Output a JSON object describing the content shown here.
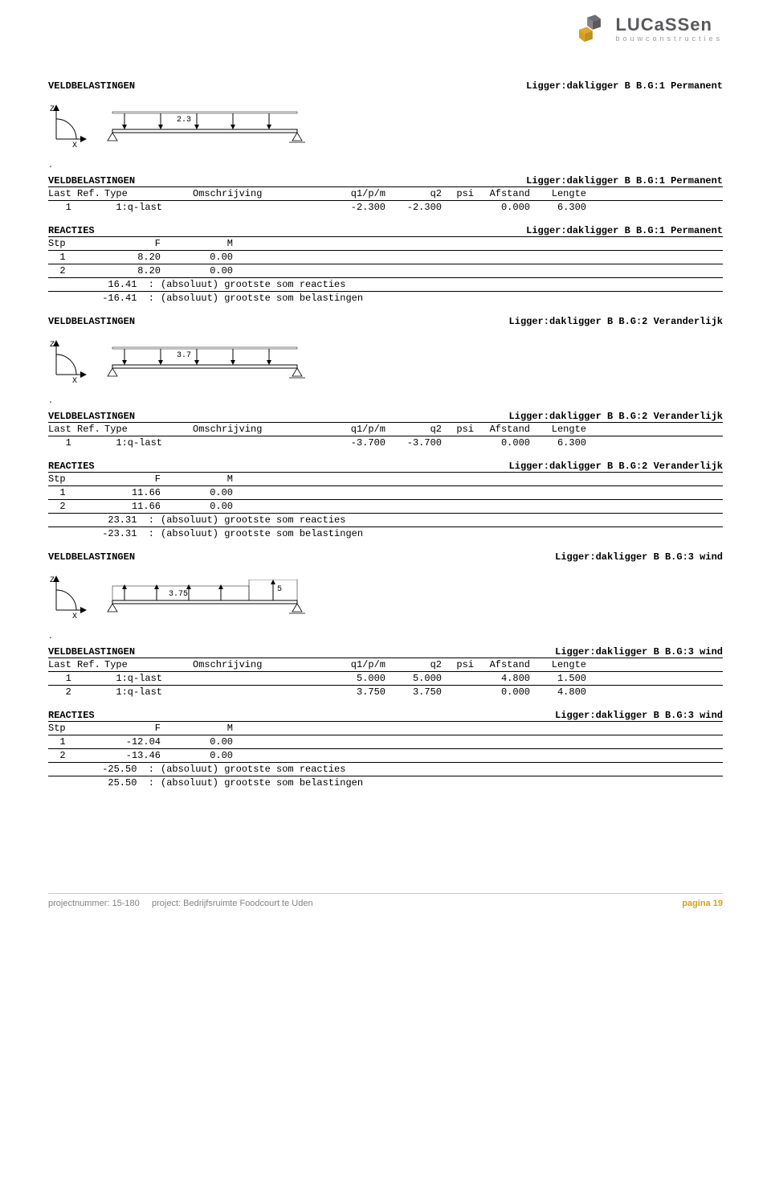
{
  "logo": {
    "name": "LUCaSSen",
    "sub": "bouwconstructies",
    "cube_color_a": "#e0a72a",
    "cube_color_b": "#c28f1d",
    "cube_color_c": "#6d6e71"
  },
  "footer": {
    "projnum_label": "projectnummer:",
    "projnum": "15-180",
    "proj_label": "project:",
    "proj": "Bedrijfsruimte Foodcourt te Uden",
    "page_label": "pagina",
    "page_num": "19"
  },
  "labels": {
    "veldbelastingen": "VELDBELASTINGEN",
    "reacties": "REACTIES",
    "lastref": "Last Ref.",
    "type": "Type",
    "oms": "Omschrijving",
    "q1": "q1/p/m",
    "q2": "q2",
    "psi": "psi",
    "afstand": "Afstand",
    "lengte": "Lengte",
    "stp": "Stp",
    "F": "F",
    "M": "M",
    "abs_react": "(absoluut) grootste som reacties",
    "abs_belast": "(absoluut) grootste som belastingen"
  },
  "sections": [
    {
      "title_right": "Ligger:dakligger B B.G:1 Permanent",
      "diagram": {
        "label": "2.3",
        "type": "down",
        "second_label": null,
        "colors": {
          "beam": "#000000",
          "arrow": "#000000",
          "axis": "#000000"
        }
      },
      "load_title_right": "Ligger:dakligger B B.G:1 Permanent",
      "loads": [
        {
          "ref": "1",
          "type": "1:q-last",
          "oms": "",
          "q1": "-2.300",
          "q2": "-2.300",
          "psi": "",
          "afst": "0.000",
          "len": "6.300"
        }
      ],
      "react_title_right": "Ligger:dakligger B B.G:1 Permanent",
      "reactions": [
        {
          "stp": "1",
          "F": "8.20",
          "M": "0.00"
        },
        {
          "stp": "2",
          "F": "8.20",
          "M": "0.00"
        }
      ],
      "sums": [
        {
          "val": "16.41  :",
          "lbl_key": "abs_react"
        },
        {
          "val": "-16.41  :",
          "lbl_key": "abs_belast"
        }
      ]
    },
    {
      "title_right": "Ligger:dakligger B B.G:2 Veranderlijk",
      "diagram": {
        "label": "3.7",
        "type": "down",
        "second_label": null,
        "colors": {
          "beam": "#000000",
          "arrow": "#000000",
          "axis": "#000000"
        }
      },
      "load_title_right": "Ligger:dakligger B B.G:2 Veranderlijk",
      "loads": [
        {
          "ref": "1",
          "type": "1:q-last",
          "oms": "",
          "q1": "-3.700",
          "q2": "-3.700",
          "psi": "",
          "afst": "0.000",
          "len": "6.300"
        }
      ],
      "react_title_right": "Ligger:dakligger B B.G:2 Veranderlijk",
      "reactions": [
        {
          "stp": "1",
          "F": "11.66",
          "M": "0.00"
        },
        {
          "stp": "2",
          "F": "11.66",
          "M": "0.00"
        }
      ],
      "sums": [
        {
          "val": "23.31  :",
          "lbl_key": "abs_react"
        },
        {
          "val": "-23.31  :",
          "lbl_key": "abs_belast"
        }
      ]
    },
    {
      "title_right": "Ligger:dakligger B B.G:3 wind",
      "diagram": {
        "label": "3.75",
        "type": "up",
        "second_label": "5",
        "colors": {
          "beam": "#000000",
          "arrow": "#000000",
          "axis": "#000000"
        }
      },
      "load_title_right": "Ligger:dakligger B B.G:3 wind",
      "loads": [
        {
          "ref": "1",
          "type": "1:q-last",
          "oms": "",
          "q1": "5.000",
          "q2": "5.000",
          "psi": "",
          "afst": "4.800",
          "len": "1.500"
        },
        {
          "ref": "2",
          "type": "1:q-last",
          "oms": "",
          "q1": "3.750",
          "q2": "3.750",
          "psi": "",
          "afst": "0.000",
          "len": "4.800"
        }
      ],
      "react_title_right": "Ligger:dakligger B B.G:3 wind",
      "reactions": [
        {
          "stp": "1",
          "F": "-12.04",
          "M": "0.00"
        },
        {
          "stp": "2",
          "F": "-13.46",
          "M": "0.00"
        }
      ],
      "sums": [
        {
          "val": "-25.50  :",
          "lbl_key": "abs_react"
        },
        {
          "val": "25.50  :",
          "lbl_key": "abs_belast"
        }
      ]
    }
  ]
}
